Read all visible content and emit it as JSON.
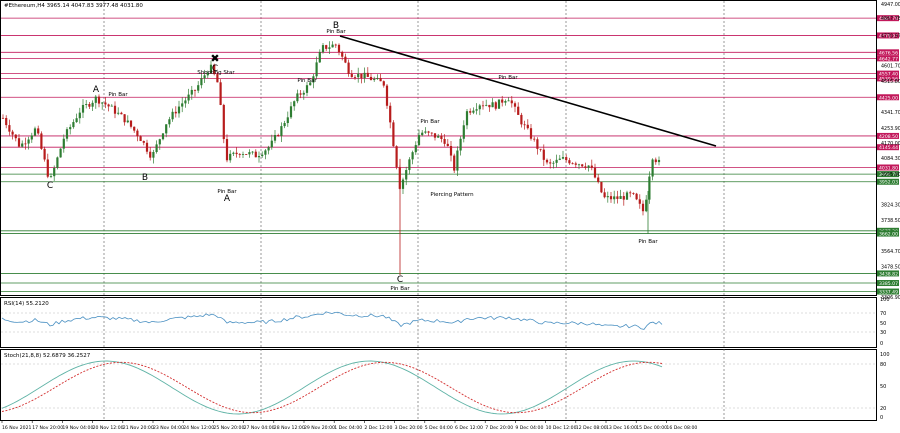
{
  "header": {
    "symbol_info": "#Ethereum,H4  3965.14 4047.83 3977.48 4031.80"
  },
  "main_panel": {
    "price_axis": [
      "4947.00",
      "4867.78",
      "4770.97",
      "4601.70",
      "4515.80",
      "4341.70",
      "4253.90",
      "4170.00",
      "4084.30",
      "3995.90",
      "3824.30",
      "3738.50",
      "3564.70",
      "3478.50",
      "3306.90"
    ],
    "price_range": [
      3306.9,
      4947.0
    ],
    "horizontal_levels": [
      {
        "price": "4867.78",
        "color": "#c2185b"
      },
      {
        "price": "4770.97",
        "color": "#c2185b"
      },
      {
        "price": "4676.56",
        "color": "#c2185b"
      },
      {
        "price": "4642.77",
        "color": "#c2185b"
      },
      {
        "price": "4557.40",
        "color": "#c2185b"
      },
      {
        "price": "4530.56",
        "color": "#c2185b"
      },
      {
        "price": "4425.00",
        "color": "#c2185b"
      },
      {
        "price": "4208.50",
        "color": "#c2185b"
      },
      {
        "price": "4145.44",
        "color": "#c2185b"
      },
      {
        "price": "4031.80",
        "color": "#c2185b"
      },
      {
        "price": "3994.78",
        "color": "#2e7d32"
      },
      {
        "price": "3952.03",
        "color": "#2e7d32"
      },
      {
        "price": "3677.38",
        "color": "#2e7d32"
      },
      {
        "price": "3662.00",
        "color": "#2e7d32"
      },
      {
        "price": "3438.82",
        "color": "#2e7d32"
      },
      {
        "price": "3385.07",
        "color": "#2e7d32"
      },
      {
        "price": "3337.49",
        "color": "#2e7d32"
      }
    ],
    "wave_labels": [
      "A",
      "B",
      "C",
      "C",
      "B",
      "A",
      "B",
      "C"
    ],
    "pattern_labels": [
      "Pin Bar",
      "Pin Bar",
      "Shooting Star",
      "Pin Bar",
      "Pin Bar",
      "Pin Bar",
      "Pin Bar",
      "Piercing Pattern",
      "Pin Bar",
      "Pin Bar",
      "Pin Bar"
    ],
    "trendline": {
      "color": "#000000"
    },
    "bull_color": "#2e7d32",
    "bear_color": "#b71c1c"
  },
  "rsi_panel": {
    "title": "RSI(14) 55.2120",
    "axis": [
      "100",
      "70",
      "50",
      "30",
      "0"
    ],
    "line_color": "#4a90c2"
  },
  "stoch_panel": {
    "title": "Stoch(21,8,8) 52.6879 36.2527",
    "axis": [
      "100",
      "80",
      "50",
      "20",
      "0"
    ],
    "main_color": "#5fb3a6",
    "signal_color": "#d32f2f"
  },
  "time_axis": [
    "16 Nov 2021",
    "17 Nov 20:00",
    "19 Nov 04:00",
    "20 Nov 12:00",
    "21 Nov 20:00",
    "23 Nov 04:00",
    "24 Nov 12:00",
    "25 Nov 20:00",
    "27 Nov 04:00",
    "28 Nov 12:00",
    "29 Nov 20:00",
    "1 Dec 04:00",
    "2 Dec 12:00",
    "3 Dec 20:00",
    "5 Dec 04:00",
    "6 Dec 12:00",
    "7 Dec 20:00",
    "9 Dec 04:00",
    "10 Dec 12:00",
    "12 Dec 08:00",
    "13 Dec 16:00",
    "15 Dec 00:00",
    "16 Dec 08:00"
  ]
}
